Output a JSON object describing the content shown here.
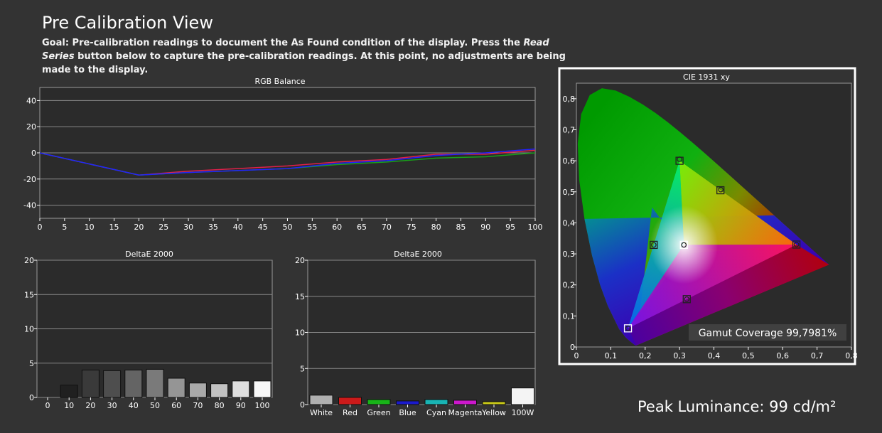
{
  "header": {
    "title": "Pre Calibration View",
    "goal_prefix": "Goal: Pre-calibration readings to document the As Found condition of the display. Press the ",
    "goal_emphasis": "Read Series",
    "goal_suffix": " button below to capture the pre-calibration readings. At this point, no adjustments are being made to the display."
  },
  "colors": {
    "background": "#333333",
    "plot_bg": "#2b2b2b",
    "grid": "#8a8a8a",
    "red": "#e0204a",
    "green": "#19a019",
    "blue": "#2222ff"
  },
  "chart_data": [
    {
      "type": "line",
      "title": "RGB Balance",
      "x": [
        0,
        20,
        30,
        50,
        60,
        70,
        80,
        90,
        100
      ],
      "xticks": [
        0,
        5,
        10,
        15,
        20,
        25,
        30,
        35,
        40,
        45,
        50,
        55,
        60,
        65,
        70,
        75,
        80,
        85,
        90,
        95,
        100
      ],
      "yticks": [
        40,
        20,
        0,
        -20,
        -40
      ],
      "ylim": [
        -50,
        50
      ],
      "series": [
        {
          "color": "#e0204a",
          "values": [
            0,
            -17,
            -14,
            -10,
            -7,
            -5,
            -1,
            -1,
            2
          ]
        },
        {
          "color": "#19a019",
          "values": [
            0,
            -17,
            -15,
            -12,
            -9,
            -7,
            -4,
            -3,
            0
          ]
        },
        {
          "color": "#2222ff",
          "values": [
            0,
            -17,
            -15,
            -12,
            -8,
            -6,
            -2,
            0,
            3
          ]
        }
      ]
    },
    {
      "type": "bar",
      "title": "DeltaE 2000",
      "categories": [
        "0",
        "10",
        "20",
        "30",
        "40",
        "50",
        "60",
        "70",
        "80",
        "90",
        "100"
      ],
      "values": [
        0,
        1.8,
        4.0,
        3.9,
        4.0,
        4.1,
        2.8,
        2.1,
        2.0,
        2.4,
        2.4
      ],
      "colors": [
        "#000000",
        "#202020",
        "#3a3a3a",
        "#4e4e4e",
        "#646464",
        "#7a7a7a",
        "#959595",
        "#aaaaaa",
        "#c2c2c2",
        "#dedede",
        "#f8f8f8"
      ],
      "yticks": [
        20,
        15,
        10,
        5,
        0
      ],
      "ylim": [
        0,
        20
      ]
    },
    {
      "type": "bar",
      "title": "DeltaE 2000",
      "categories": [
        "White",
        "Red",
        "Green",
        "Blue",
        "Cyan",
        "Magenta",
        "Yellow",
        "100W"
      ],
      "values": [
        1.3,
        1.0,
        0.7,
        0.5,
        0.7,
        0.6,
        0.4,
        2.3
      ],
      "colors": [
        "#b0b0b0",
        "#cc1a1a",
        "#18b418",
        "#1a1acc",
        "#18b4b4",
        "#cc18cc",
        "#c8c818",
        "#f4f4f4"
      ],
      "yticks": [
        20,
        15,
        10,
        5,
        0
      ],
      "ylim": [
        0,
        20
      ]
    },
    {
      "type": "scatter",
      "title": "CIE 1931 xy",
      "xticks": [
        "0",
        "0,1",
        "0,2",
        "0,3",
        "0,4",
        "0,5",
        "0,6",
        "0,7",
        "0,8"
      ],
      "yticks": [
        "0,8",
        "0,7",
        "0,6",
        "0,5",
        "0,4",
        "0,3",
        "0,2",
        "0,1",
        "0"
      ],
      "xlim": [
        0,
        0.8
      ],
      "ylim": [
        0,
        0.85
      ],
      "targets": [
        [
          0.64,
          0.33
        ],
        [
          0.3,
          0.6
        ],
        [
          0.15,
          0.06
        ],
        [
          0.225,
          0.329
        ],
        [
          0.321,
          0.154
        ],
        [
          0.419,
          0.505
        ],
        [
          0.3127,
          0.329
        ]
      ],
      "measured": [
        [
          0.64,
          0.33
        ],
        [
          0.3,
          0.605
        ],
        [
          0.15,
          0.06
        ],
        [
          0.225,
          0.329
        ],
        [
          0.321,
          0.154
        ],
        [
          0.42,
          0.507
        ],
        [
          0.3127,
          0.329
        ]
      ],
      "gamut_label": "Gamut Coverage 99,7981%"
    }
  ],
  "footer": {
    "peak_luminance": "Peak Luminance: 99 cd/m²"
  }
}
